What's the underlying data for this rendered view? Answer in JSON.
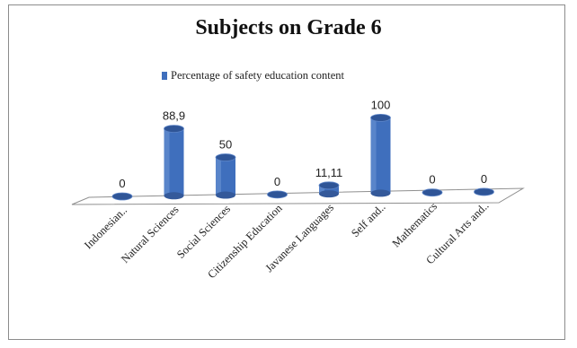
{
  "chart_data": {
    "type": "bar",
    "title": "Subjects on Grade 6",
    "legend": "Percentage of safety education content",
    "categories": [
      "Indonesian..",
      "Natural Sciences",
      "Social Sciences",
      "Citizenship Education",
      "Javanese Languages",
      "Self and..",
      "Mathematics",
      "Cultural Arts and.."
    ],
    "series": [
      {
        "name": "Percentage of safety education content",
        "values": [
          0,
          88.9,
          50,
          0,
          11.11,
          100,
          0,
          0
        ],
        "value_labels": [
          "0",
          "88,9",
          "50",
          "0",
          "11,11",
          "100",
          "0",
          "0"
        ]
      }
    ],
    "ylim": [
      0,
      100
    ],
    "legend_position": "top",
    "color": "#3f6fbd",
    "grid": false,
    "style": "3d-cylinder"
  }
}
